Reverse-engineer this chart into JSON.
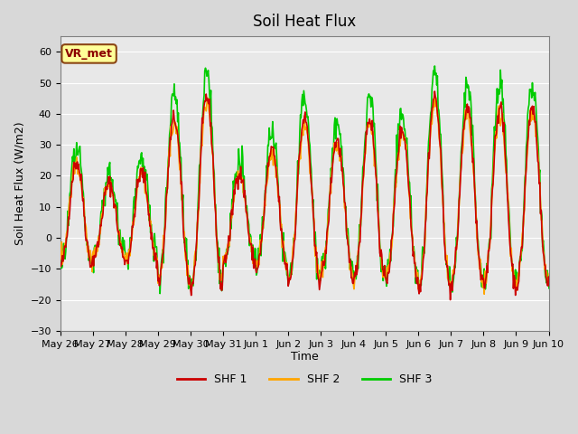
{
  "title": "Soil Heat Flux",
  "ylabel": "Soil Heat Flux (W/m2)",
  "xlabel": "Time",
  "ylim": [
    -30,
    65
  ],
  "yticks": [
    -30,
    -20,
    -10,
    0,
    10,
    20,
    30,
    40,
    50,
    60
  ],
  "shf1_color": "#cc0000",
  "shf2_color": "#ffa500",
  "shf3_color": "#00cc00",
  "line_width": 1.2,
  "annotation_text": "VR_met",
  "annotation_bg": "#ffff99",
  "annotation_border": "#8b4513",
  "legend_labels": [
    "SHF 1",
    "SHF 2",
    "SHF 3"
  ],
  "xtick_labels": [
    "May 26",
    "May 27",
    "May 28",
    "May 29",
    "May 30",
    "May 31",
    "Jun 1",
    "Jun 2",
    "Jun 3",
    "Jun 4",
    "Jun 5",
    "Jun 6",
    "Jun 7",
    "Jun 8",
    "Jun 9",
    "Jun 10"
  ],
  "n_days": 16,
  "seed": 42,
  "day_amplitudes": [
    0.7,
    0.5,
    0.6,
    1.1,
    1.3,
    0.6,
    0.8,
    1.1,
    0.9,
    1.1,
    1.0,
    1.3,
    1.2,
    1.2,
    1.2,
    1.0
  ]
}
